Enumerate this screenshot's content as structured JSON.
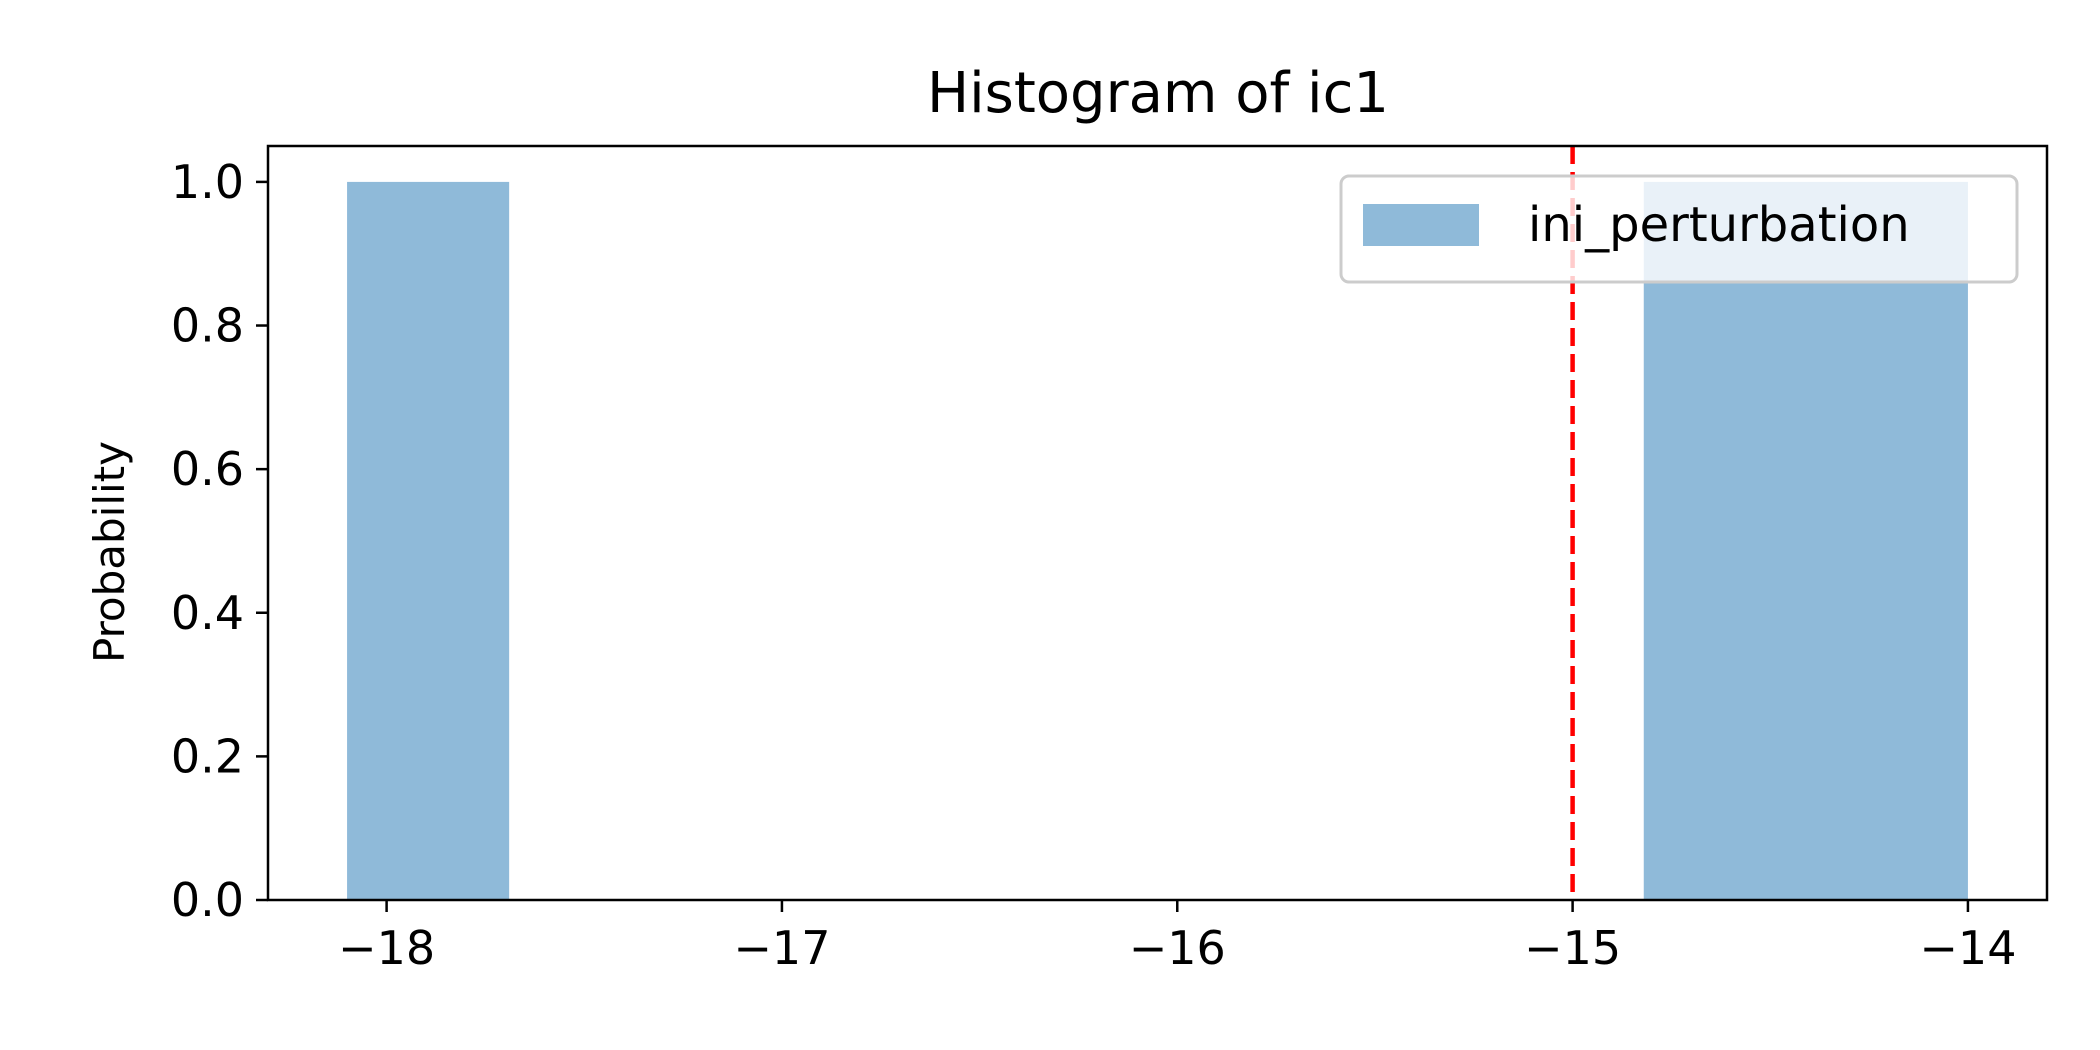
{
  "chart_data": {
    "type": "bar",
    "title": "Histogram of ic1",
    "xlabel": "",
    "ylabel": "Probability",
    "xlim": [
      -18.3,
      -13.8
    ],
    "ylim": [
      0,
      1.05
    ],
    "xticks": [
      -18,
      -17,
      -16,
      -15,
      -14
    ],
    "xtick_labels": [
      "−18",
      "−17",
      "−16",
      "−15",
      "−14"
    ],
    "yticks": [
      0.0,
      0.2,
      0.4,
      0.6,
      0.8,
      1.0
    ],
    "ytick_labels": [
      "0.0",
      "0.2",
      "0.4",
      "0.6",
      "0.8",
      "1.0"
    ],
    "series": [
      {
        "name": "ini_perturbation",
        "color": "#8fbad9",
        "bins": [
          {
            "x0": -18.1,
            "x1": -17.69,
            "value": 1.0
          },
          {
            "x0": -14.82,
            "x1": -14.0,
            "value": 1.0
          }
        ]
      }
    ],
    "vline": {
      "x": -15,
      "color": "#ff0000",
      "style": "dashed"
    },
    "grid": false,
    "legend": {
      "placement": "top-right",
      "entries": [
        "ini_perturbation"
      ]
    }
  }
}
